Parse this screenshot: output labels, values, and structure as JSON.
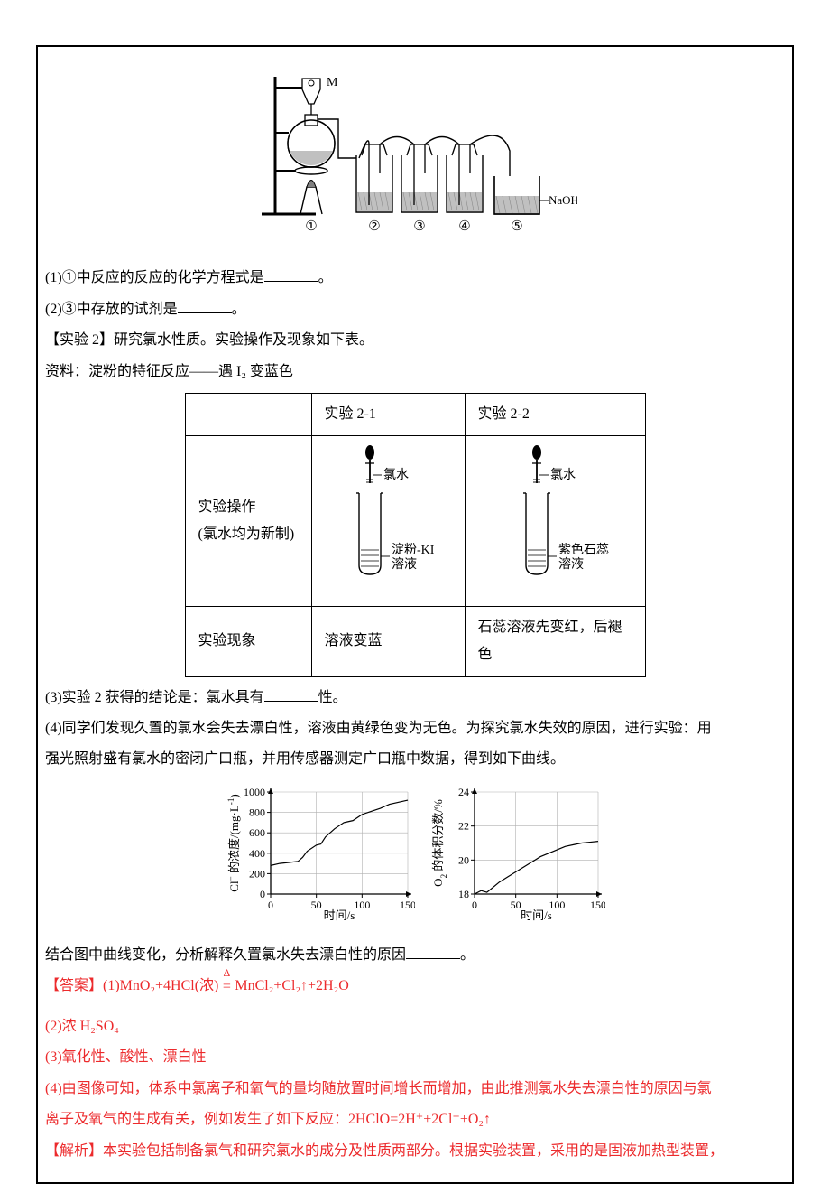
{
  "apparatus": {
    "label_M": "M",
    "label_NaOH": "NaOH溶液",
    "flask_labels": [
      "①",
      "②",
      "③",
      "④",
      "⑤"
    ],
    "colors": {
      "stroke": "#000000",
      "liquid": "#c0c0c0",
      "flame": "#808080"
    }
  },
  "q1_label": "(1)①中反应的反应的化学方程式是",
  "q1_period": "。",
  "q2_label": "(2)③中存放的试剂是",
  "q2_period": "。",
  "exp2_heading": "【实验 2】研究氯水性质。实验操作及现象如下表。",
  "exp2_resource": "资料：淀粉的特征反应——遇 I₂ 变蓝色",
  "table": {
    "col_exp21": "实验 2-1",
    "col_exp22": "实验 2-2",
    "row_op_label_l1": "实验操作",
    "row_op_label_l2": "(氯水均为新制)",
    "tube1_top": "氯水",
    "tube1_bottom_l1": "淀粉-KI",
    "tube1_bottom_l2": "溶液",
    "tube2_top": "氯水",
    "tube2_bottom_l1": "紫色石蕊",
    "tube2_bottom_l2": "溶液",
    "row_phenom_label": "实验现象",
    "phenom1": "溶液变蓝",
    "phenom2": "石蕊溶液先变红，后褪色"
  },
  "q3_label": "(3)实验 2 获得的结论是：氯水具有",
  "q3_after": "性。",
  "q4_line1": "(4)同学们发现久置的氯水会失去漂白性，溶液由黄绿色变为无色。为探究氯水失效的原因，进行实验：用",
  "q4_line2": "强光照射盛有氯水的密闭广口瓶，并用传感器测定广口瓶中数据，得到如下曲线。",
  "charts": {
    "chart1": {
      "type": "line",
      "ylabel": "Cl⁻ 的浓度/(mg·L⁻¹)",
      "xlabel": "时间/s",
      "xlim": [
        0,
        150
      ],
      "ylim": [
        0,
        1000
      ],
      "xticks": [
        0,
        50,
        100,
        150
      ],
      "yticks": [
        0,
        200,
        400,
        600,
        800,
        1000
      ],
      "points": [
        [
          0,
          280
        ],
        [
          10,
          300
        ],
        [
          20,
          310
        ],
        [
          30,
          320
        ],
        [
          35,
          360
        ],
        [
          40,
          420
        ],
        [
          50,
          480
        ],
        [
          55,
          490
        ],
        [
          60,
          560
        ],
        [
          70,
          640
        ],
        [
          80,
          700
        ],
        [
          90,
          720
        ],
        [
          100,
          780
        ],
        [
          110,
          810
        ],
        [
          120,
          840
        ],
        [
          130,
          880
        ],
        [
          140,
          900
        ],
        [
          150,
          920
        ]
      ],
      "line_color": "#000000",
      "line_width": 1.2,
      "grid_color": "#b0b0b0",
      "background_color": "#ffffff",
      "axis_fontsize": 12
    },
    "chart2": {
      "type": "line",
      "ylabel": "O₂ 的体积分数/%",
      "xlabel": "时间/s",
      "xlim": [
        0,
        150
      ],
      "ylim": [
        18,
        24
      ],
      "xticks": [
        0,
        50,
        100,
        150
      ],
      "yticks": [
        18,
        20,
        22,
        24
      ],
      "points": [
        [
          0,
          18.0
        ],
        [
          8,
          18.2
        ],
        [
          15,
          18.1
        ],
        [
          20,
          18.3
        ],
        [
          30,
          18.7
        ],
        [
          40,
          19.0
        ],
        [
          50,
          19.3
        ],
        [
          60,
          19.6
        ],
        [
          70,
          19.9
        ],
        [
          80,
          20.2
        ],
        [
          90,
          20.4
        ],
        [
          100,
          20.6
        ],
        [
          110,
          20.8
        ],
        [
          120,
          20.9
        ],
        [
          130,
          21.0
        ],
        [
          140,
          21.05
        ],
        [
          150,
          21.1
        ]
      ],
      "line_color": "#000000",
      "line_width": 1.2,
      "grid_color": "#b0b0b0",
      "background_color": "#ffffff",
      "axis_fontsize": 12
    }
  },
  "conclusion_prompt": "结合图中曲线变化，分析解释久置氯水失去漂白性的原因",
  "conclusion_period": "。",
  "answers": {
    "label": "【答案】",
    "a1_pre": "(1)MnO₂+4HCl(浓)",
    "a1_post": "MnCl₂+Cl₂↑+2H₂O",
    "a2": "(2)浓 H₂SO₄",
    "a3": "(3)氧化性、酸性、漂白性",
    "a4_l1": "(4)由图像可知，体系中氯离子和氧气的量均随放置时间增长而增加，由此推测氯水失去漂白性的原因与氯",
    "a4_l2": "离子及氧气的生成有关，例如发生了如下反应：2HClO=2H⁺+2Cl⁻+O₂↑",
    "analysis": "【解析】本实验包括制备氯气和研究氯水的成分及性质两部分。根据实验装置，采用的是固液加热型装置，"
  }
}
